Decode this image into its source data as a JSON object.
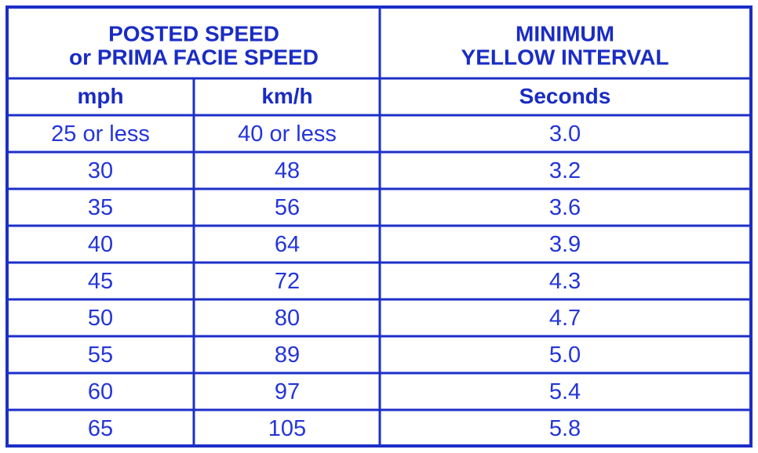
{
  "table": {
    "header_groups": [
      [
        "POSTED SPEED",
        "or PRIMA FACIE SPEED"
      ],
      [
        "MINIMUM",
        "YELLOW INTERVAL"
      ]
    ],
    "columns": [
      "mph",
      "km/h",
      "Seconds"
    ],
    "rows": [
      [
        "25 or less",
        "40 or less",
        "3.0"
      ],
      [
        "30",
        "48",
        "3.2"
      ],
      [
        "35",
        "56",
        "3.6"
      ],
      [
        "40",
        "64",
        "3.9"
      ],
      [
        "45",
        "72",
        "4.3"
      ],
      [
        "50",
        "80",
        "4.7"
      ],
      [
        "55",
        "89",
        "5.0"
      ],
      [
        "60",
        "97",
        "5.4"
      ],
      [
        "65",
        "105",
        "5.8"
      ]
    ]
  }
}
